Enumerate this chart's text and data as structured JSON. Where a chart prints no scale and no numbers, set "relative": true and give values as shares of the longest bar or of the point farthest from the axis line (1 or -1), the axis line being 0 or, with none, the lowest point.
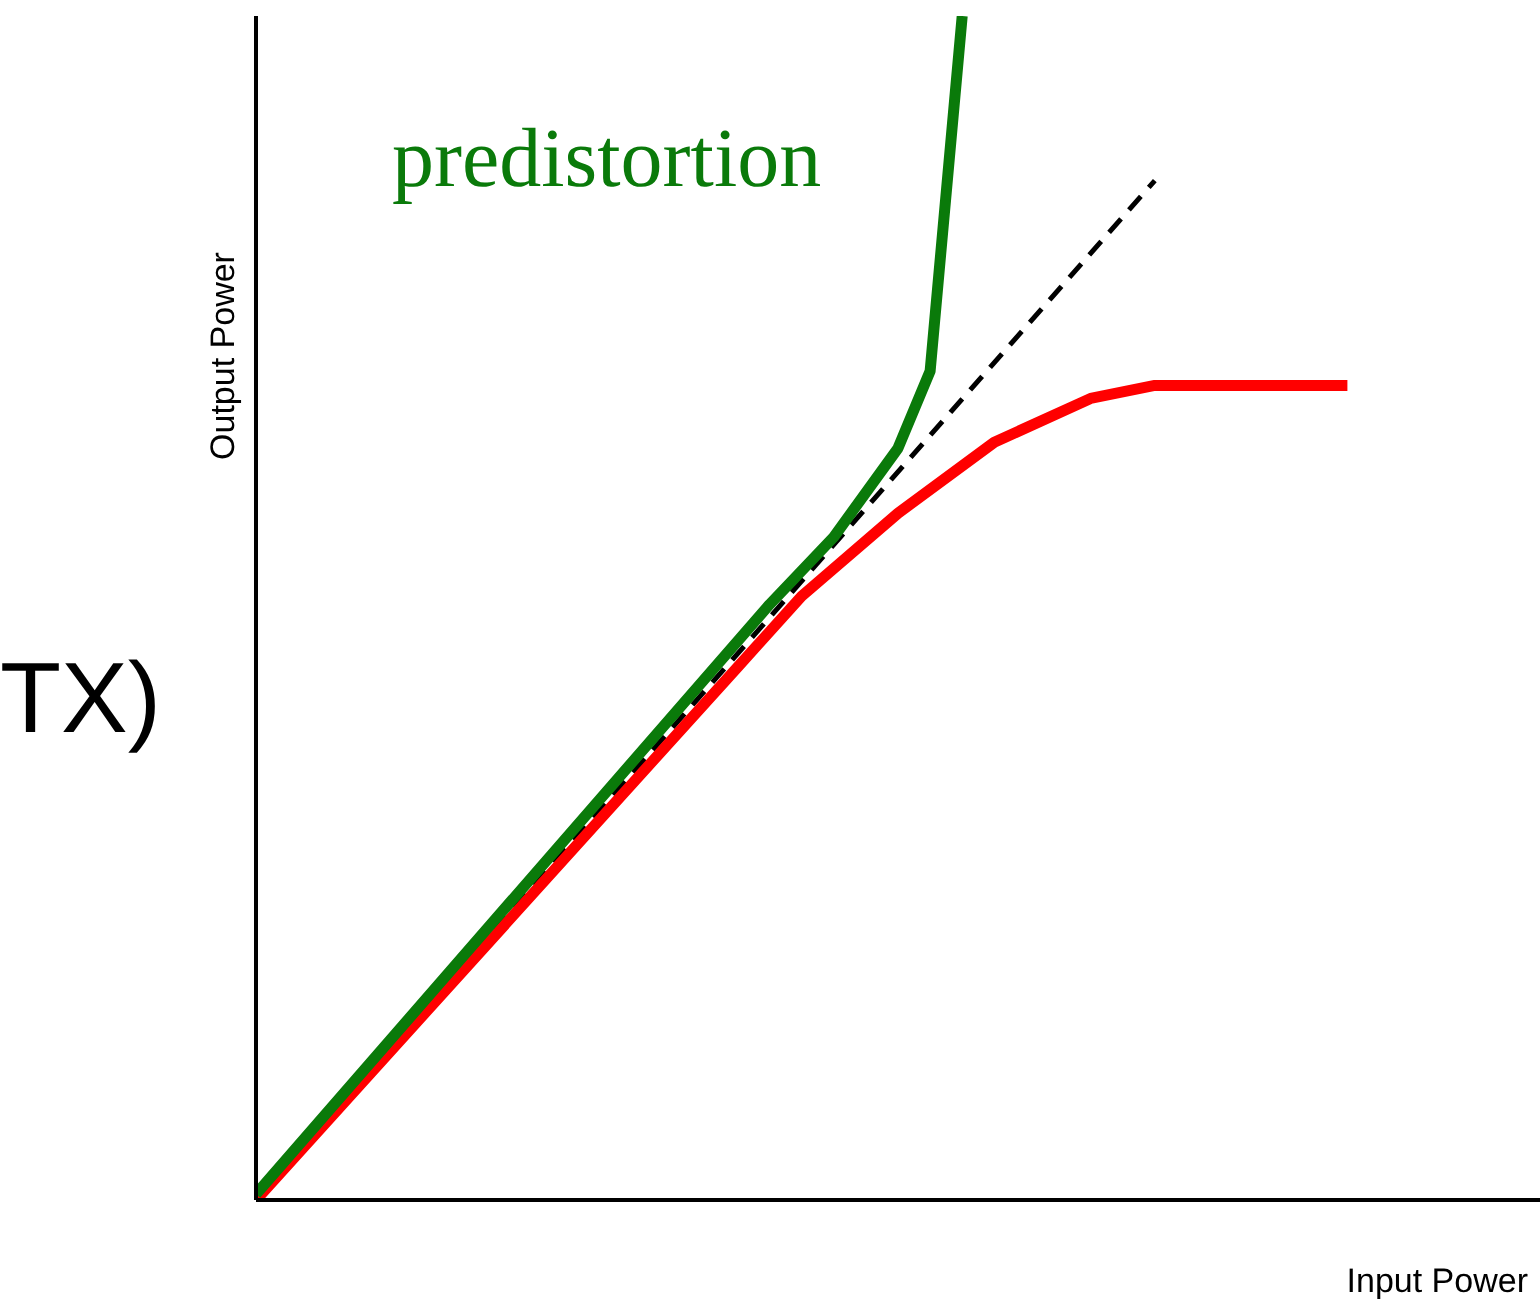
{
  "chart_data": {
    "type": "line",
    "relative": true,
    "xlabel": "Input Power",
    "ylabel": "Output Power",
    "annotations": [
      "TX)"
    ],
    "marker": "none",
    "categories": [
      null,
      null,
      null,
      null,
      null,
      null,
      null,
      null,
      null,
      null,
      null,
      null,
      null,
      null,
      null,
      null,
      null,
      null,
      null,
      null,
      null,
      null,
      null,
      null,
      null,
      null,
      null,
      null,
      null,
      null,
      null,
      null,
      null,
      null,
      null,
      null,
      null,
      null,
      null,
      null,
      null
    ],
    "series": [
      {
        "color": "#000000",
        "line_style": "dashed",
        "values": [
          0,
          null,
          null,
          null,
          null,
          null,
          null,
          null,
          null,
          null,
          null,
          null,
          null,
          null,
          null,
          null,
          null,
          null,
          null,
          null,
          null,
          null,
          null,
          null,
          null,
          null,
          null,
          null,
          0.861,
          null,
          null,
          null,
          null,
          null,
          null,
          null,
          null,
          null,
          null,
          null,
          null
        ]
      },
      {
        "color": "#ff0000",
        "values": [
          0,
          null,
          null,
          null,
          null,
          null,
          null,
          null,
          null,
          null,
          null,
          null,
          null,
          null,
          null,
          0.45,
          null,
          0.51,
          null,
          null,
          0.58,
          null,
          null,
          0.64,
          null,
          null,
          0.677,
          null,
          0.688,
          null,
          null,
          null,
          null,
          null,
          0.688,
          null,
          null,
          null,
          null,
          null,
          null
        ]
      },
      {
        "name": "predistortion",
        "color": "#0a7a0a",
        "values": [
          0.005,
          null,
          null,
          null,
          null,
          null,
          null,
          null,
          null,
          null,
          null,
          null,
          null,
          null,
          null,
          null,
          0.503,
          null,
          0.56,
          null,
          0.635,
          0.7,
          1,
          null,
          null,
          null,
          null,
          null,
          null,
          null,
          null,
          null,
          null,
          null,
          null,
          null,
          null,
          null,
          null,
          null,
          null
        ]
      }
    ]
  }
}
